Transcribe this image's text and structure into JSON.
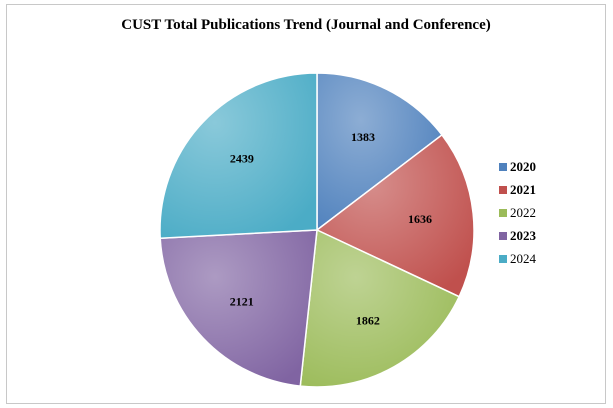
{
  "chart_data": {
    "type": "pie",
    "title": "CUST Total Publications Trend (Journal and Conference)",
    "categories": [
      "2020",
      "2021",
      "2022",
      "2023",
      "2024"
    ],
    "values": [
      1383,
      1636,
      1862,
      2121,
      2439
    ],
    "colors": [
      "#4f81bd",
      "#c0504d",
      "#9bbb59",
      "#8064a2",
      "#4bacc6"
    ],
    "legend_placement": "right",
    "start_angle_deg": 0,
    "direction": "clockwise"
  }
}
